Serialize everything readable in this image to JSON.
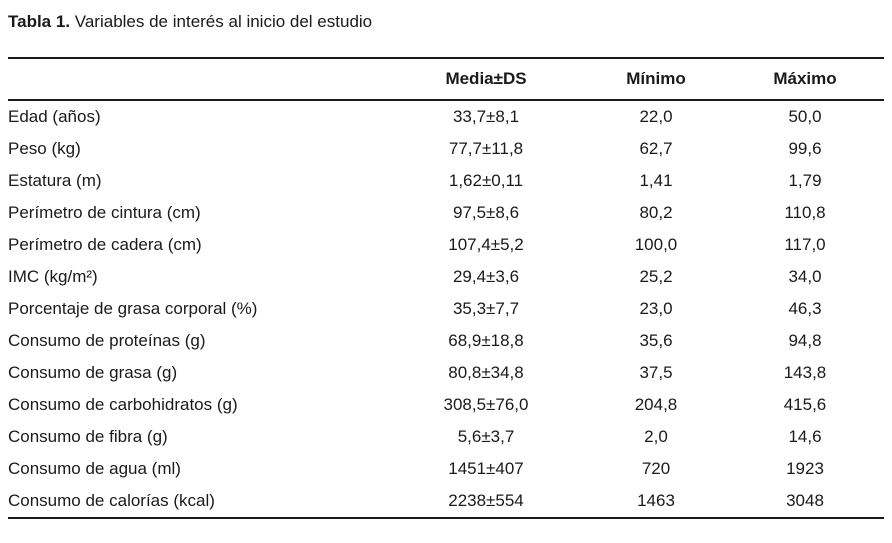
{
  "title": {
    "label": "Tabla 1.",
    "text": " Variables de interés al inicio del estudio"
  },
  "colors": {
    "text": "#1a1a1a",
    "rule": "#1a1a1a",
    "background": "#ffffff"
  },
  "table": {
    "columns": {
      "label": "",
      "media_ds": "Media±DS",
      "minimo": "Mínimo",
      "maximo": "Máximo"
    },
    "rows": [
      {
        "label": "Edad (años)",
        "media_ds": "33,7±8,1",
        "minimo": "22,0",
        "maximo": "50,0"
      },
      {
        "label": "Peso (kg)",
        "media_ds": "77,7±11,8",
        "minimo": "62,7",
        "maximo": "99,6"
      },
      {
        "label": "Estatura (m)",
        "media_ds": "1,62±0,11",
        "minimo": "1,41",
        "maximo": "1,79"
      },
      {
        "label": "Perímetro de cintura (cm)",
        "media_ds": "97,5±8,6",
        "minimo": "80,2",
        "maximo": "110,8"
      },
      {
        "label": "Perímetro de cadera (cm)",
        "media_ds": "107,4±5,2",
        "minimo": "100,0",
        "maximo": "117,0"
      },
      {
        "label": "IMC (kg/m²)",
        "media_ds": "29,4±3,6",
        "minimo": "25,2",
        "maximo": "34,0"
      },
      {
        "label": "Porcentaje de grasa corporal (%)",
        "media_ds": "35,3±7,7",
        "minimo": "23,0",
        "maximo": "46,3"
      },
      {
        "label": "Consumo de proteínas (g)",
        "media_ds": "68,9±18,8",
        "minimo": "35,6",
        "maximo": "94,8"
      },
      {
        "label": "Consumo de grasa (g)",
        "media_ds": "80,8±34,8",
        "minimo": "37,5",
        "maximo": "143,8"
      },
      {
        "label": "Consumo de carbohidratos (g)",
        "media_ds": "308,5±76,0",
        "minimo": "204,8",
        "maximo": "415,6"
      },
      {
        "label": "Consumo de fibra (g)",
        "media_ds": "5,6±3,7",
        "minimo": "2,0",
        "maximo": "14,6"
      },
      {
        "label": "Consumo de agua (ml)",
        "media_ds": "1451±407",
        "minimo": "720",
        "maximo": "1923"
      },
      {
        "label": "Consumo de calorías (kcal)",
        "media_ds": "2238±554",
        "minimo": "1463",
        "maximo": "3048"
      }
    ]
  }
}
